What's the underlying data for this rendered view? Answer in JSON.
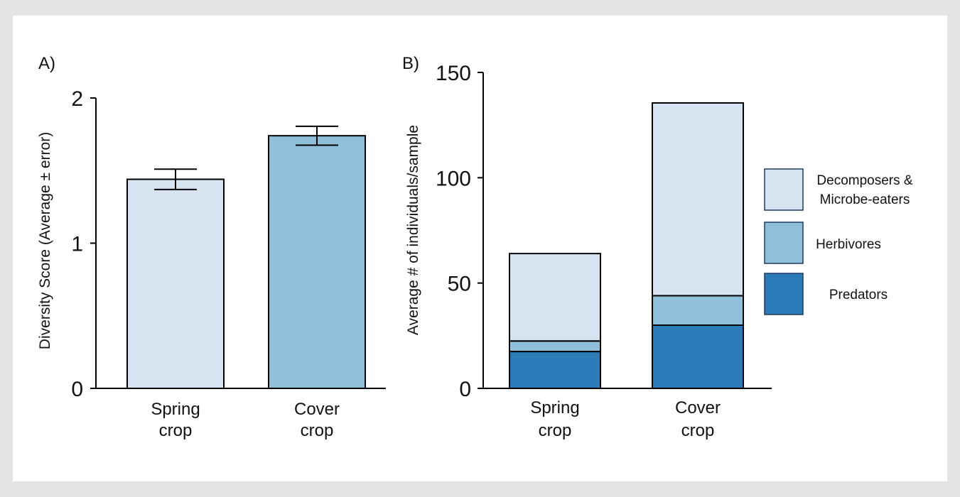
{
  "colors": {
    "background": "#e3e4e6",
    "panel": "#ffffff",
    "light": "#d6e3f0",
    "medium": "#8fbfd9",
    "dark": "#2a7bb8"
  },
  "chart_data": [
    {
      "panel_label": "A)",
      "type": "bar",
      "title": "",
      "xlabel": "",
      "ylabel": "Diversity Score (Average ± error)",
      "ylim": [
        0,
        2
      ],
      "yticks": [
        "0",
        "1",
        "2"
      ],
      "categories": [
        {
          "line1": "Spring",
          "line2": "crop"
        },
        {
          "line1": "Cover",
          "line2": "crop"
        }
      ],
      "values": [
        1.44,
        1.74
      ],
      "errors": [
        0.07,
        0.065
      ],
      "bar_colors": [
        "#d6e3f0",
        "#8fbfd9"
      ],
      "grid": false
    },
    {
      "panel_label": "B)",
      "type": "bar",
      "stacked": true,
      "title": "",
      "xlabel": "",
      "ylabel": "Average # of individuals/sample",
      "ylim": [
        0,
        150
      ],
      "yticks": [
        "0",
        "50",
        "100",
        "150"
      ],
      "categories": [
        {
          "line1": "Spring",
          "line2": "crop"
        },
        {
          "line1": "Cover",
          "line2": "crop"
        }
      ],
      "series": [
        {
          "name": "Predators",
          "values": [
            17.5,
            30
          ],
          "color": "#2a7bb8"
        },
        {
          "name": "Herbivores",
          "values": [
            5,
            14
          ],
          "color": "#8fbfd9"
        },
        {
          "name": "Decomposers & Microbe-eaters",
          "values": [
            41.5,
            91.5
          ],
          "color": "#d6e3f0"
        }
      ],
      "legend": {
        "placement": "right",
        "items": [
          {
            "line1": "Decomposers &",
            "line2": "Microbe-eaters",
            "color": "#d6e3f0"
          },
          {
            "line1": "Herbivores",
            "line2": "",
            "color": "#8fbfd9"
          },
          {
            "line1": "Predators",
            "line2": "",
            "color": "#2a7bb8"
          }
        ]
      },
      "grid": false
    }
  ]
}
